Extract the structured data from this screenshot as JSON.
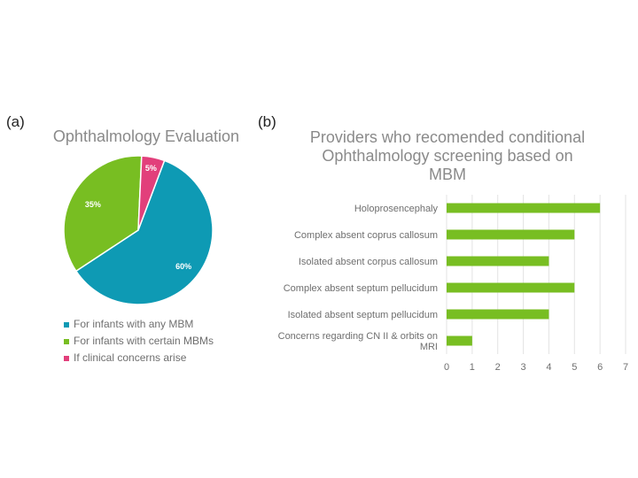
{
  "panel_a_label": "(a)",
  "panel_b_label": "(b)",
  "colors": {
    "teal": "#0E9AB4",
    "green": "#78BE22",
    "pink": "#E23F7B",
    "bar": "#78BE22"
  },
  "chart_data": [
    {
      "type": "pie",
      "title": "Ophthalmology Evaluation",
      "slices": [
        {
          "label": "For infants with any MBM",
          "value": 60,
          "display": "60%",
          "color": "#0E9AB4"
        },
        {
          "label": "For infants with certain MBMs",
          "value": 35,
          "display": "35%",
          "color": "#78BE22"
        },
        {
          "label": "If clinical concerns arise",
          "value": 5,
          "display": "5%",
          "color": "#E23F7B"
        }
      ],
      "legend": "bottom"
    },
    {
      "type": "bar",
      "orientation": "horizontal",
      "title_lines": [
        "Providers who recomended conditional",
        "Ophthalmology screening based on",
        "MBM"
      ],
      "categories": [
        [
          "Holoprosencephaly"
        ],
        [
          "Complex absent coprus callosum"
        ],
        [
          "Isolated absent corpus callosum"
        ],
        [
          "Complex absent septum pellucidum"
        ],
        [
          "Isolated absent septum pellucidum"
        ],
        [
          "Concerns regarding CN II & orbits on",
          "MRI"
        ]
      ],
      "values": [
        6,
        5,
        4,
        5,
        4,
        1
      ],
      "xlim": [
        0,
        7
      ],
      "xticks": [
        "0",
        "1",
        "2",
        "3",
        "4",
        "5",
        "6",
        "7"
      ],
      "grid": "vertical",
      "color": "#78BE22"
    }
  ]
}
